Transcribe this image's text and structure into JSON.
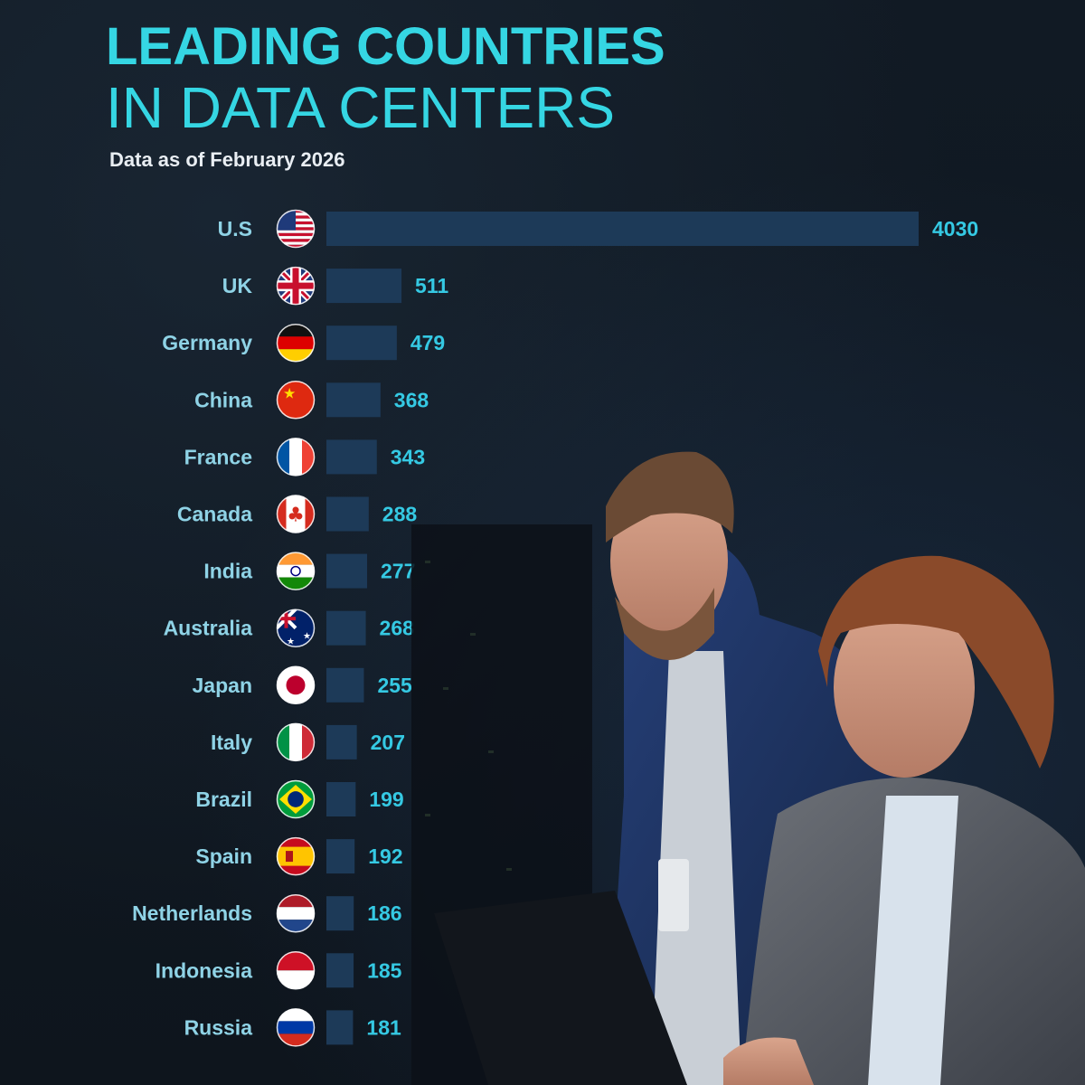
{
  "header": {
    "title_line1": "LEADING COUNTRIES",
    "title_line2": "IN DATA CENTERS",
    "subtitle": "Data as of February 2026"
  },
  "colors": {
    "accent": "#35d6e3",
    "bar": "#1d3a58",
    "label": "#8fd3e6",
    "value": "#35c9e3",
    "background": "#0f1720"
  },
  "chart_data": {
    "type": "bar",
    "orientation": "horizontal",
    "title": "LEADING COUNTRIES IN DATA CENTERS",
    "subtitle": "Data as of February 2026",
    "categories": [
      "U.S",
      "UK",
      "Germany",
      "China",
      "France",
      "Canada",
      "India",
      "Australia",
      "Japan",
      "Italy",
      "Brazil",
      "Spain",
      "Netherlands",
      "Indonesia",
      "Russia"
    ],
    "values": [
      4030,
      511,
      479,
      368,
      343,
      288,
      277,
      268,
      255,
      207,
      199,
      192,
      186,
      185,
      181
    ],
    "flags": [
      "us-flag-icon",
      "uk-flag-icon",
      "germany-flag-icon",
      "china-flag-icon",
      "france-flag-icon",
      "canada-flag-icon",
      "india-flag-icon",
      "australia-flag-icon",
      "japan-flag-icon",
      "italy-flag-icon",
      "brazil-flag-icon",
      "spain-flag-icon",
      "netherlands-flag-icon",
      "indonesia-flag-icon",
      "russia-flag-icon"
    ],
    "grid": false,
    "legend": "none"
  }
}
